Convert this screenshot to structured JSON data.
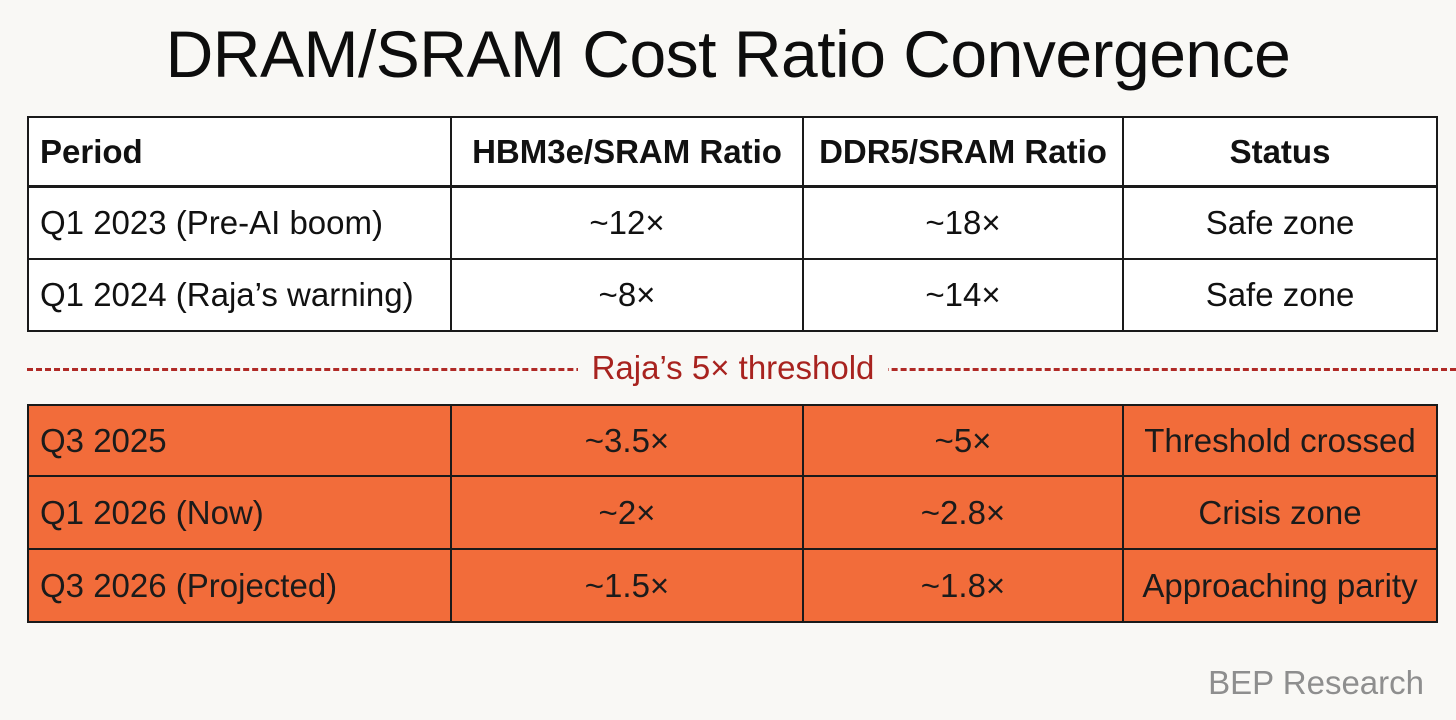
{
  "title": "DRAM/SRAM Cost Ratio Convergence",
  "chart_data": {
    "type": "table",
    "title": "DRAM/SRAM Cost Ratio Convergence",
    "columns": [
      "Period",
      "HBM3e/SRAM Ratio",
      "DDR5/SRAM Ratio",
      "Status"
    ],
    "rows_above_threshold": [
      [
        "Q1 2023 (Pre-AI boom)",
        "~12×",
        "~18×",
        "Safe zone"
      ],
      [
        "Q1 2024 (Raja’s warning)",
        "~8×",
        "~14×",
        "Safe zone"
      ]
    ],
    "threshold_label": "Raja’s 5× threshold",
    "rows_below_threshold": [
      [
        "Q3 2025",
        "~3.5×",
        "~5×",
        "Threshold crossed"
      ],
      [
        "Q1 2026 (Now)",
        "~2×",
        "~2.8×",
        "Crisis zone"
      ],
      [
        "Q3 2026 (Projected)",
        "~1.5×",
        "~1.8×",
        "Approaching parity"
      ]
    ]
  },
  "colors": {
    "highlight_row": "#f26c3a",
    "threshold_line": "#b02a26",
    "background": "#f9f8f5"
  },
  "footer": "BEP Research"
}
